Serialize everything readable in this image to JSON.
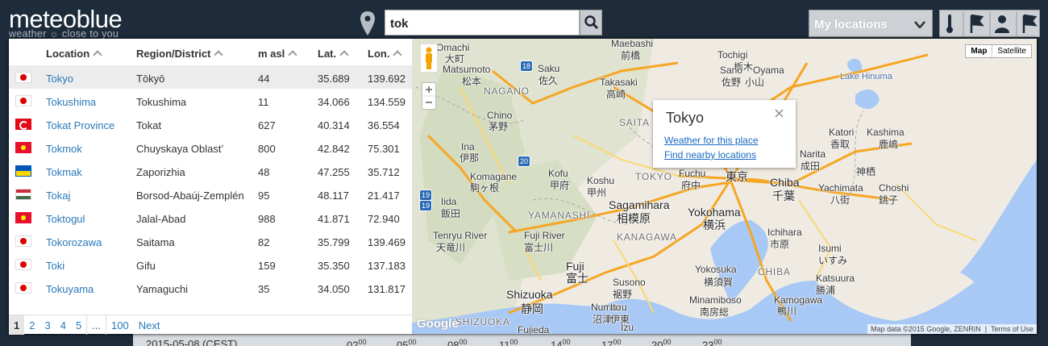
{
  "header": {
    "logo": "meteoblue",
    "tagline": "weather ☼ close to you",
    "search": "tok",
    "my_locations": "My locations"
  },
  "table": {
    "columns": [
      "Location",
      "Region/District",
      "m asl",
      "Lat.",
      "Lon."
    ],
    "rows": [
      [
        "Tokyo",
        "Tōkyō",
        "44",
        "35.689",
        "139.692"
      ],
      [
        "Tokushima",
        "Tokushima",
        "11",
        "34.066",
        "134.559"
      ],
      [
        "Tokat Province",
        "Tokat",
        "627",
        "40.314",
        "36.554"
      ],
      [
        "Tokmok",
        "Chuyskaya Oblastʼ",
        "800",
        "42.842",
        "75.301"
      ],
      [
        "Tokmak",
        "Zaporizhia",
        "48",
        "47.255",
        "35.712"
      ],
      [
        "Tokaj",
        "Borsod-Abaúj-Zemplén",
        "95",
        "48.117",
        "21.417"
      ],
      [
        "Toktogul",
        "Jalal-Abad",
        "988",
        "41.871",
        "72.940"
      ],
      [
        "Tokorozawa",
        "Saitama",
        "82",
        "35.799",
        "139.469"
      ],
      [
        "Toki",
        "Gifu",
        "159",
        "35.350",
        "137.183"
      ],
      [
        "Tokuyama",
        "Yamaguchi",
        "35",
        "34.050",
        "131.817"
      ]
    ]
  },
  "pagination": [
    "1",
    "2",
    "3",
    "4",
    "5",
    "...",
    "100",
    "Next"
  ],
  "map": {
    "buttons": [
      "Map",
      "Satellite"
    ],
    "popup": {
      "title": "Tokyo",
      "links": [
        "Weather for this place",
        "Find nearby locations"
      ]
    },
    "labels": [
      "Omachi",
      "大町",
      "Matsumoto",
      "松本",
      "Saku",
      "佐久",
      "Maebashi",
      "前橋",
      "Takasaki",
      "高崎",
      "Tochigi",
      "栃木",
      "Sano",
      "佐野",
      "Oyama",
      "小山",
      "Lake Hinuma",
      "NAGANO",
      "Chino",
      "茅野",
      "SAITA",
      "Ina",
      "伊那",
      "Komagane",
      "駒ヶ根",
      "Iida",
      "飯田",
      "Kofu",
      "甲府",
      "Koshu",
      "甲州",
      "TOKYO",
      "Fuchu",
      "府中",
      "Sagamihara",
      "相模原",
      "Yokohama",
      "横浜",
      "YAMANASHI",
      "KANAGAWA",
      "Tenryu River",
      "天竜川",
      "Fuji River",
      "富士川",
      "Fuji",
      "富士",
      "Susono",
      "裾野",
      "Shizuoka",
      "静岡",
      "Numazu",
      "沼津",
      "Ito",
      "伊東",
      "Yokosuka",
      "横須賀",
      "Minamiboso",
      "南房総",
      "Kamogawa",
      "鴨川",
      "Katsuura",
      "勝浦",
      "Ichihara",
      "市原",
      "Chiba",
      "千葉",
      "Narita",
      "成田",
      "Katori",
      "香取",
      "Kashima",
      "鹿嶋",
      "神栖",
      "Yachimata",
      "八街",
      "Choshi",
      "銚子",
      "CHIBA",
      "Isumi",
      "いすみ",
      "SHIZUOKA",
      "Fujieda",
      "Izu",
      "東京"
    ],
    "shields": [
      "18",
      "19",
      "20",
      "19"
    ],
    "google": "Google",
    "attribution": "Map data ©2015 Google, ZENRIN",
    "terms": "Terms of Use"
  },
  "forecast": {
    "date": "2015-05-08 (CEST)",
    "hours": [
      "02",
      "05",
      "08",
      "11",
      "14",
      "17",
      "20",
      "23"
    ],
    "minutes": "00"
  }
}
